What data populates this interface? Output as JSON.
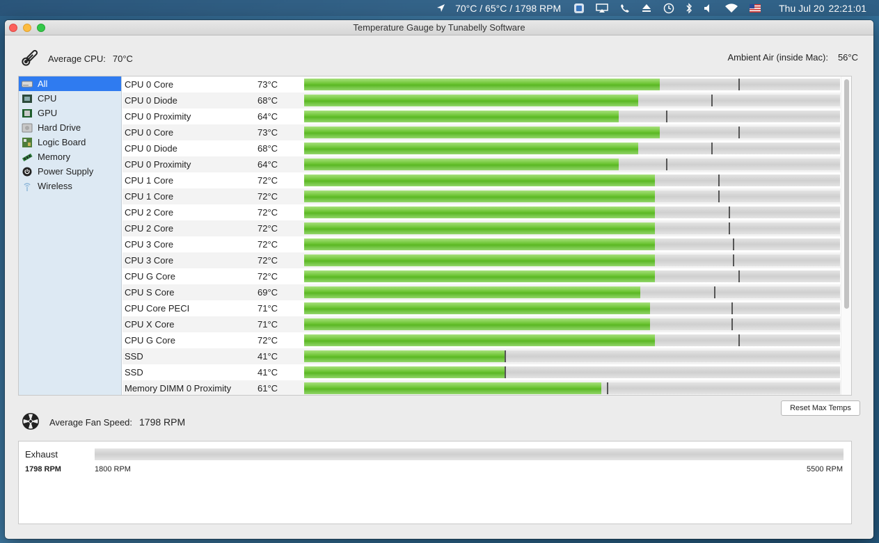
{
  "menubar": {
    "status_text": "70°C / 65°C / 1798 RPM",
    "date": "Thu Jul 20",
    "time": "22:21:01",
    "icons": [
      "location-arrow-icon",
      "app-status-icon",
      "airplay-icon",
      "phone-icon",
      "eject-icon",
      "time-machine-icon",
      "bluetooth-icon",
      "volume-icon",
      "wifi-icon",
      "us-flag-icon"
    ]
  },
  "window": {
    "title": "Temperature Gauge by Tunabelly Software"
  },
  "summary": {
    "avg_cpu_label": "Average CPU:",
    "avg_cpu_value": "70°C",
    "ambient_label": "Ambient Air (inside Mac):",
    "ambient_value": "56°C"
  },
  "sidebar": {
    "items": [
      {
        "label": "All",
        "icon": "drive-icon",
        "selected": true
      },
      {
        "label": "CPU",
        "icon": "cpu-icon",
        "selected": false
      },
      {
        "label": "GPU",
        "icon": "gpu-icon",
        "selected": false
      },
      {
        "label": "Hard Drive",
        "icon": "hard-drive-icon",
        "selected": false
      },
      {
        "label": "Logic Board",
        "icon": "logic-board-icon",
        "selected": false
      },
      {
        "label": "Memory",
        "icon": "memory-icon",
        "selected": false
      },
      {
        "label": "Power Supply",
        "icon": "power-icon",
        "selected": false
      },
      {
        "label": "Wireless",
        "icon": "wireless-icon",
        "selected": false
      }
    ]
  },
  "sensors": [
    {
      "name": "CPU 0 Core",
      "temp": "73°C",
      "level": 0.664,
      "max_level": 0.81
    },
    {
      "name": "CPU 0 Diode",
      "temp": "68°C",
      "level": 0.623,
      "max_level": 0.76
    },
    {
      "name": "CPU 0 Proximity",
      "temp": "64°C",
      "level": 0.587,
      "max_level": 0.675
    },
    {
      "name": "CPU 0 Core",
      "temp": "73°C",
      "level": 0.664,
      "max_level": 0.81
    },
    {
      "name": "CPU 0 Diode",
      "temp": "68°C",
      "level": 0.623,
      "max_level": 0.76
    },
    {
      "name": "CPU 0 Proximity",
      "temp": "64°C",
      "level": 0.587,
      "max_level": 0.675
    },
    {
      "name": "CPU 1 Core",
      "temp": "72°C",
      "level": 0.655,
      "max_level": 0.773
    },
    {
      "name": "CPU 1 Core",
      "temp": "72°C",
      "level": 0.655,
      "max_level": 0.773
    },
    {
      "name": "CPU 2 Core",
      "temp": "72°C",
      "level": 0.655,
      "max_level": 0.792
    },
    {
      "name": "CPU 2 Core",
      "temp": "72°C",
      "level": 0.655,
      "max_level": 0.792
    },
    {
      "name": "CPU 3 Core",
      "temp": "72°C",
      "level": 0.655,
      "max_level": 0.8
    },
    {
      "name": "CPU 3 Core",
      "temp": "72°C",
      "level": 0.655,
      "max_level": 0.8
    },
    {
      "name": "CPU G Core",
      "temp": "72°C",
      "level": 0.655,
      "max_level": 0.81
    },
    {
      "name": "CPU S Core",
      "temp": "69°C",
      "level": 0.627,
      "max_level": 0.765
    },
    {
      "name": "CPU Core PECI",
      "temp": "71°C",
      "level": 0.646,
      "max_level": 0.797
    },
    {
      "name": "CPU X Core",
      "temp": "71°C",
      "level": 0.646,
      "max_level": 0.797
    },
    {
      "name": "CPU G Core",
      "temp": "72°C",
      "level": 0.655,
      "max_level": 0.81
    },
    {
      "name": "SSD",
      "temp": "41°C",
      "level": 0.374,
      "max_level": 0.374
    },
    {
      "name": "SSD",
      "temp": "41°C",
      "level": 0.374,
      "max_level": 0.374
    },
    {
      "name": "Memory DIMM 0 Proximity",
      "temp": "61°C",
      "level": 0.555,
      "max_level": 0.565
    }
  ],
  "reset_button": "Reset Max Temps",
  "fan_summary": {
    "label": "Average Fan Speed:",
    "value": "1798 RPM"
  },
  "fans": [
    {
      "name": "Exhaust",
      "rpm": "1798 RPM",
      "min": "1800 RPM",
      "max": "5500 RPM",
      "level": 0
    }
  ],
  "colors": {
    "bar_fill": "#6bc432",
    "selection": "#2f7bf0",
    "sidebar_bg": "#dde9f3"
  }
}
